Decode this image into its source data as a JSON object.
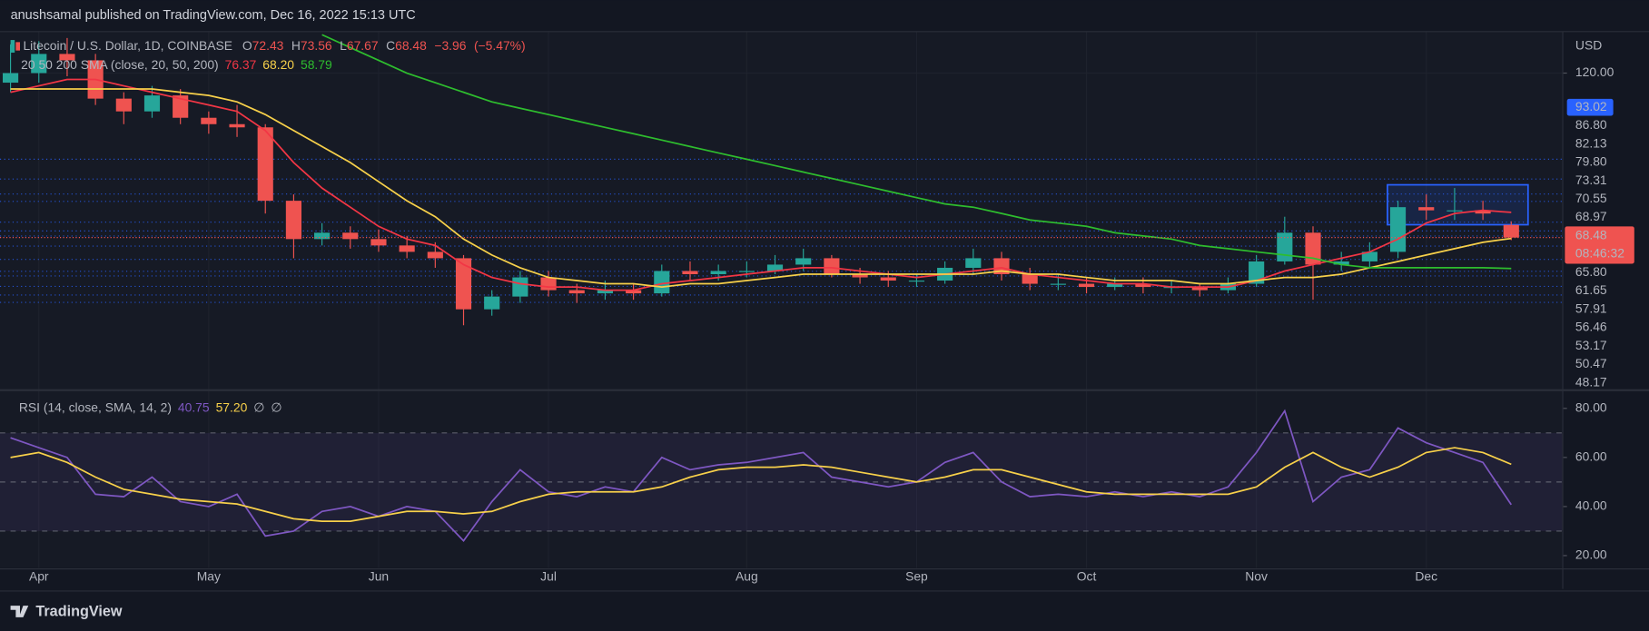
{
  "header": {
    "publisher": "anushsamal published on TradingView.com, Dec 16, 2022 15:13 UTC"
  },
  "footer": {
    "brand": "TradingView"
  },
  "chart_data": [
    {
      "type": "candlestick",
      "title": "Litecoin / U.S. Dollar, 1D, COINBASE",
      "currency": "USD",
      "ohlc_labels": [
        "O",
        "H",
        "L",
        "C"
      ],
      "change": {
        "value": -3.96,
        "label": "−3.96"
      },
      "change_pct": {
        "value": -5.47,
        "label": "(−5.47%)"
      },
      "indicator": "20 50 200 SMA (close, 20, 50, 200)",
      "categories": [
        null,
        "Apr",
        null,
        null,
        null,
        null,
        null,
        "May",
        null,
        null,
        null,
        null,
        null,
        "Jun",
        null,
        null,
        null,
        null,
        null,
        "Jul",
        null,
        null,
        null,
        null,
        null,
        null,
        "Aug",
        null,
        null,
        null,
        null,
        null,
        "Sep",
        null,
        null,
        null,
        null,
        null,
        "Oct",
        null,
        null,
        null,
        null,
        null,
        "Nov",
        null,
        null,
        null,
        null,
        null,
        "Dec",
        null,
        null,
        null
      ],
      "open": [
        117,
        120,
        126,
        124,
        112,
        108,
        113,
        106,
        104,
        103,
        80,
        68,
        70,
        68,
        66,
        64,
        62,
        46,
        50,
        56,
        52,
        51,
        52,
        51,
        58,
        57,
        58,
        58,
        60,
        62,
        57,
        56,
        55,
        55,
        59,
        62,
        57,
        54,
        54,
        53,
        54,
        53,
        53,
        52,
        54,
        61,
        70,
        60,
        61,
        64,
        78,
        77,
        77,
        72.43
      ],
      "high": [
        129,
        130,
        131,
        126,
        114,
        116,
        115,
        108,
        110,
        104,
        82,
        73,
        72,
        71,
        69,
        67,
        63,
        52,
        58,
        58,
        54,
        55,
        54,
        60,
        61,
        60,
        61,
        63,
        65,
        63,
        59,
        58,
        57,
        61,
        65,
        64,
        59,
        57,
        56,
        56,
        56,
        55,
        54,
        56,
        63,
        75,
        72,
        64,
        67,
        80,
        82,
        84,
        80,
        73.56
      ],
      "low": [
        114,
        117,
        119,
        110,
        104,
        106,
        104,
        101,
        100,
        76,
        62,
        66,
        65,
        64,
        62,
        59,
        41,
        44,
        48,
        50,
        48,
        49,
        49,
        50,
        55,
        55,
        56,
        57,
        58,
        56,
        54,
        53,
        53,
        54,
        57,
        55,
        52,
        52,
        51,
        52,
        51,
        51,
        50,
        51,
        53,
        60,
        49,
        58,
        59,
        62,
        74,
        74,
        74,
        67.67
      ],
      "close": [
        120,
        126,
        124,
        112,
        108,
        113,
        106,
        104,
        103,
        80,
        68,
        70,
        68,
        66,
        64,
        62,
        46,
        50,
        56,
        52,
        51,
        52,
        51,
        58,
        57,
        58,
        58,
        60,
        62,
        57,
        56,
        55,
        55,
        59,
        62,
        57,
        54,
        54,
        53,
        54,
        53,
        53,
        52,
        54,
        61,
        70,
        60,
        61,
        64,
        78,
        77,
        77,
        76,
        68.48
      ],
      "up_color": "#26a69a",
      "down_color": "#ef5350",
      "series": [
        {
          "color": "#f23645",
          "values": [
            114,
            116,
            118,
            118,
            116,
            114,
            112,
            110,
            108,
            102,
            92,
            84,
            78,
            72,
            68,
            66,
            60,
            56,
            54,
            53,
            53,
            52,
            52,
            54,
            55,
            56,
            57,
            58,
            59,
            59,
            58,
            57,
            56,
            57,
            58,
            59,
            57,
            56,
            55,
            54,
            54,
            53,
            53,
            53,
            55,
            58,
            60,
            62,
            64,
            68,
            73,
            76,
            77,
            76.37
          ],
          "value_labels": [
            null,
            null,
            null,
            null,
            null,
            null,
            null,
            null,
            null,
            null,
            null,
            null,
            null,
            null,
            null,
            null,
            null,
            null,
            null,
            null,
            null,
            null,
            null,
            null,
            null,
            null,
            null,
            null,
            null,
            null,
            null,
            null,
            null,
            null,
            null,
            null,
            null,
            null,
            null,
            null,
            null,
            null,
            null,
            null,
            null,
            null,
            null,
            null,
            null,
            null,
            null,
            null,
            null,
            "76.37"
          ]
        },
        {
          "color": "#f7d04a",
          "values": [
            115,
            115,
            115,
            115,
            115,
            115,
            114,
            113,
            111,
            107,
            102,
            97,
            92,
            86,
            80,
            75,
            68,
            63,
            59,
            56,
            55,
            54,
            54,
            53,
            54,
            54,
            55,
            56,
            57,
            57,
            57,
            57,
            57,
            57,
            57,
            58,
            57,
            57,
            56,
            55,
            55,
            55,
            54,
            54,
            55,
            56,
            56,
            57,
            59,
            61,
            63,
            65,
            67,
            68.2
          ],
          "value_labels": [
            null,
            null,
            null,
            null,
            null,
            null,
            null,
            null,
            null,
            null,
            null,
            null,
            null,
            null,
            null,
            null,
            null,
            null,
            null,
            null,
            null,
            null,
            null,
            null,
            null,
            null,
            null,
            null,
            null,
            null,
            null,
            null,
            null,
            null,
            null,
            null,
            null,
            null,
            null,
            null,
            null,
            null,
            null,
            null,
            null,
            null,
            null,
            null,
            null,
            null,
            null,
            null,
            null,
            "68.20"
          ]
        },
        {
          "color": "#2ebd2e",
          "values": [
            null,
            null,
            null,
            null,
            null,
            null,
            null,
            null,
            null,
            null,
            null,
            132,
            128,
            124,
            120,
            117,
            114,
            111,
            109,
            107,
            105,
            103,
            101,
            99,
            97,
            95,
            93,
            91,
            89,
            87,
            85,
            83,
            81,
            79,
            78,
            76,
            74,
            73,
            72,
            70,
            69,
            68,
            66,
            65,
            64,
            63,
            62,
            60,
            59,
            59,
            59,
            59,
            59,
            58.79
          ],
          "value_labels": [
            null,
            null,
            null,
            null,
            null,
            null,
            null,
            null,
            null,
            null,
            null,
            null,
            null,
            null,
            null,
            null,
            null,
            null,
            null,
            null,
            null,
            null,
            null,
            null,
            null,
            null,
            null,
            null,
            null,
            null,
            null,
            null,
            null,
            null,
            null,
            null,
            null,
            null,
            null,
            null,
            null,
            null,
            null,
            null,
            null,
            null,
            null,
            null,
            null,
            null,
            null,
            null,
            null,
            "58.79"
          ]
        }
      ],
      "levels": [
        93.02,
        {
          "value": 86.8,
          "label": "86.80"
        },
        82.13,
        {
          "value": 79.8,
          "label": "79.80"
        },
        73.31,
        70.55,
        68.97,
        {
          "value": 65.8,
          "label": "65.80"
        },
        61.65,
        57.91,
        56.46,
        53.17,
        50.47,
        48.17
      ],
      "level_color": "#2962ff",
      "range_box": {
        "high": 85,
        "low": 72.5,
        "color": "#2962ff"
      },
      "countdown": "08:46:32",
      "ylim": [
        21,
        133
      ],
      "yticks": [
        {
          "value": 120,
          "label": "120.00"
        }
      ],
      "grid": true
    },
    {
      "type": "line",
      "title": "RSI (14, close, SMA, 14, 2)",
      "legend_symbols": [
        "∅",
        "∅"
      ],
      "series": [
        {
          "color": "#7e57c2",
          "values": [
            68,
            64,
            60,
            45,
            44,
            52,
            42,
            40,
            45,
            28,
            30,
            38,
            40,
            36,
            40,
            38,
            26,
            42,
            55,
            46,
            44,
            48,
            46,
            60,
            55,
            57,
            58,
            60,
            62,
            52,
            50,
            48,
            50,
            58,
            62,
            50,
            44,
            45,
            44,
            46,
            44,
            46,
            44,
            48,
            62,
            79,
            42,
            52,
            55,
            72,
            66,
            62,
            58,
            40.75
          ]
        },
        {
          "color": "#f7d04a",
          "values": [
            60,
            62,
            58,
            52,
            47,
            45,
            43,
            42,
            41,
            38,
            35,
            34,
            34,
            36,
            38,
            38,
            37,
            38,
            42,
            45,
            46,
            46,
            46,
            48,
            52,
            55,
            56,
            56,
            57,
            56,
            54,
            52,
            50,
            52,
            55,
            55,
            52,
            49,
            46,
            45,
            45,
            45,
            45,
            45,
            48,
            56,
            62,
            56,
            52,
            56,
            62,
            64,
            62,
            57.2
          ],
          "value_labels": [
            null,
            null,
            null,
            null,
            null,
            null,
            null,
            null,
            null,
            null,
            null,
            null,
            null,
            null,
            null,
            null,
            null,
            null,
            null,
            null,
            null,
            null,
            null,
            null,
            null,
            null,
            null,
            null,
            null,
            null,
            null,
            null,
            null,
            null,
            null,
            null,
            null,
            null,
            null,
            null,
            null,
            null,
            null,
            null,
            null,
            null,
            null,
            null,
            null,
            null,
            null,
            null,
            null,
            "57.20"
          ]
        }
      ],
      "bands": [
        70,
        50,
        30
      ],
      "ylim": [
        15,
        87
      ],
      "yticks": [
        {
          "value": 80,
          "label": "80.00"
        },
        {
          "value": 60,
          "label": "60.00"
        },
        {
          "value": 40,
          "label": "40.00"
        },
        {
          "value": 20,
          "label": "20.00"
        }
      ],
      "grid": true
    }
  ]
}
